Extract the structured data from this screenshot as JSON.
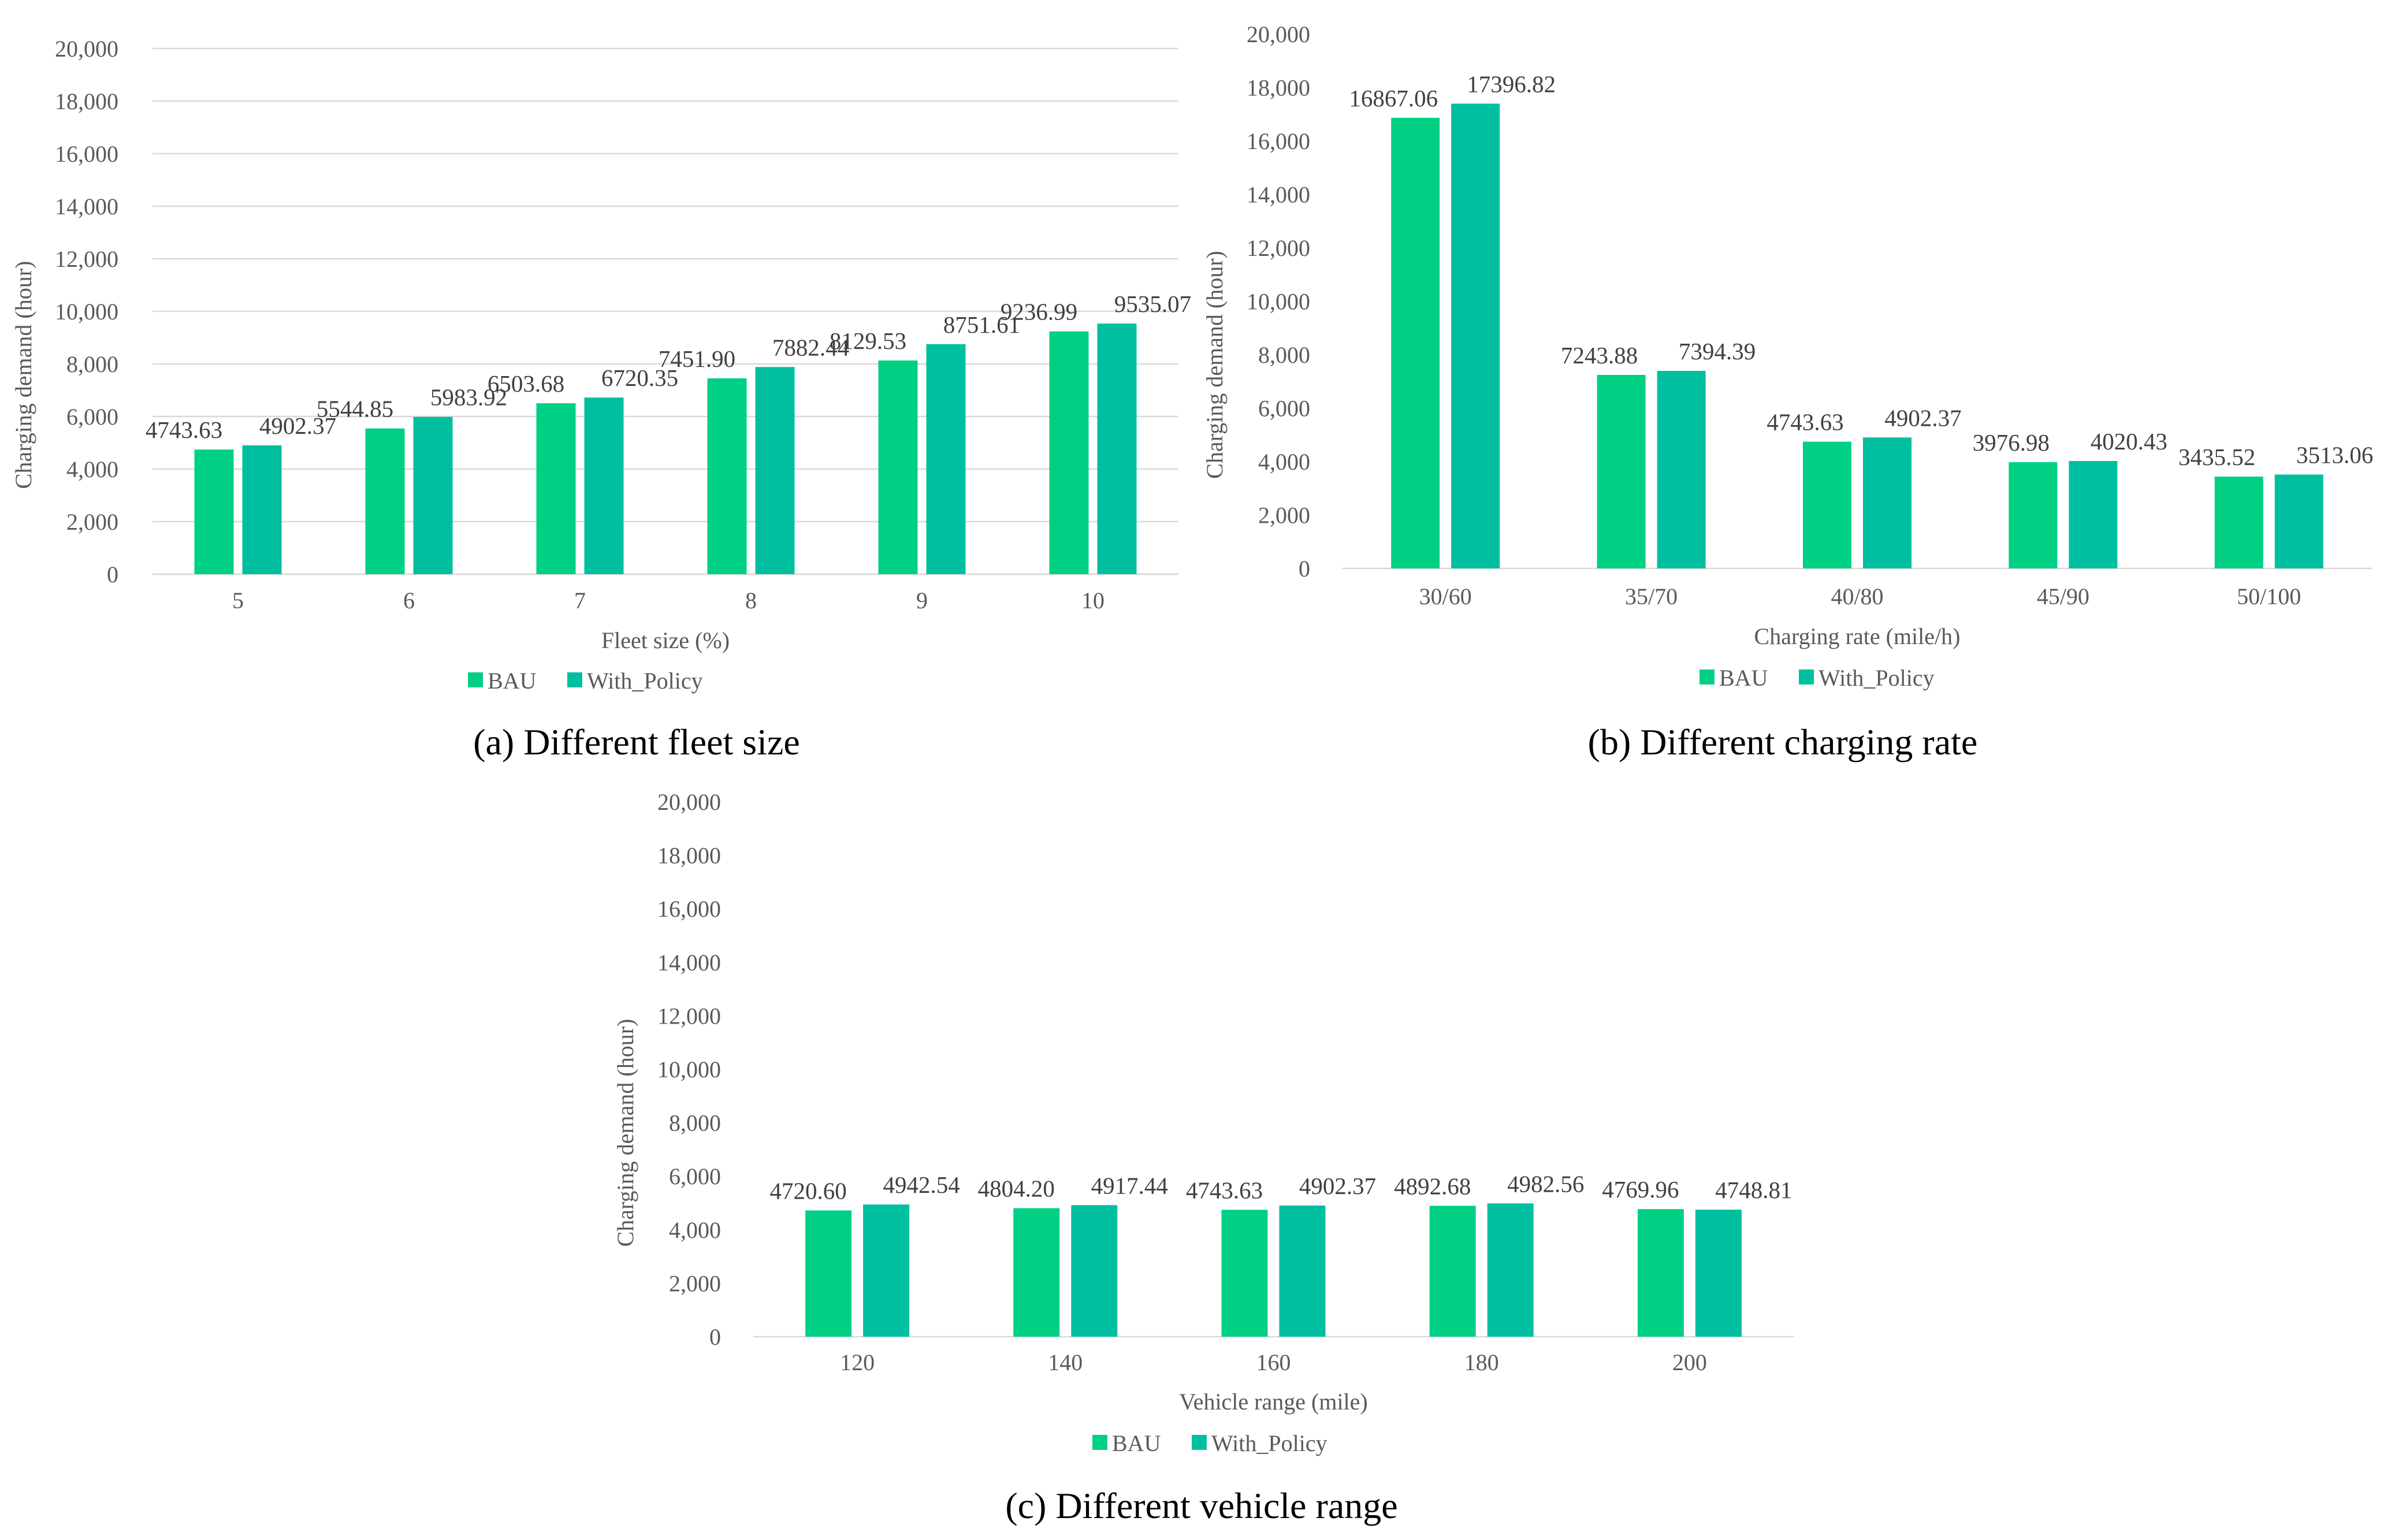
{
  "colors": {
    "bau": "#00d084",
    "policy": "#00bfa0",
    "grid": "#d9d9d9",
    "text": "#595959"
  },
  "captions": {
    "a": "(a) Different fleet size",
    "b": "(b) Different charging rate",
    "c": "(c) Different vehicle range"
  },
  "chart_data": [
    {
      "id": "a",
      "type": "bar",
      "title": "",
      "xlabel": "Fleet size (%)",
      "ylabel": "Charging demand (hour)",
      "categories": [
        "5",
        "6",
        "7",
        "8",
        "9",
        "10"
      ],
      "series": [
        {
          "name": "BAU",
          "values": [
            4743.63,
            5544.85,
            6503.68,
            7451.9,
            8129.53,
            9236.99
          ],
          "labels": [
            "4743.63",
            "5544.85",
            "6503.68",
            "7451.90",
            "8129.53",
            "9236.99"
          ]
        },
        {
          "name": "With_Policy",
          "values": [
            4902.37,
            5983.92,
            6720.35,
            7882.44,
            8751.61,
            9535.07
          ],
          "labels": [
            "4902.37",
            "5983.92",
            "6720.35",
            "7882.44",
            "8751.61",
            "9535.07"
          ]
        }
      ],
      "ylim": [
        0,
        20000
      ],
      "yticks": [
        "0",
        "2,000",
        "4,000",
        "6,000",
        "8,000",
        "10,000",
        "12,000",
        "14,000",
        "16,000",
        "18,000",
        "20,000"
      ],
      "grid": true,
      "legend": "bottom"
    },
    {
      "id": "b",
      "type": "bar",
      "title": "",
      "xlabel": "Charging rate (mile/h)",
      "ylabel": "Charging demand (hour)",
      "categories": [
        "30/60",
        "35/70",
        "40/80",
        "45/90",
        "50/100"
      ],
      "series": [
        {
          "name": "BAU",
          "values": [
            16867.06,
            7243.88,
            4743.63,
            3976.98,
            3435.52
          ],
          "labels": [
            "16867.06",
            "7243.88",
            "4743.63",
            "3976.98",
            "3435.52"
          ]
        },
        {
          "name": "With_Policy",
          "values": [
            17396.82,
            7394.39,
            4902.37,
            4020.43,
            3513.06
          ],
          "labels": [
            "17396.82",
            "7394.39",
            "4902.37",
            "4020.43",
            "3513.06"
          ]
        }
      ],
      "ylim": [
        0,
        20000
      ],
      "yticks": [
        "0",
        "2,000",
        "4,000",
        "6,000",
        "8,000",
        "10,000",
        "12,000",
        "14,000",
        "16,000",
        "18,000",
        "20,000"
      ],
      "grid": false,
      "legend": "bottom"
    },
    {
      "id": "c",
      "type": "bar",
      "title": "",
      "xlabel": "Vehicle range (mile)",
      "ylabel": "Charging demand (hour)",
      "categories": [
        "120",
        "140",
        "160",
        "180",
        "200"
      ],
      "series": [
        {
          "name": "BAU",
          "values": [
            4720.6,
            4804.2,
            4743.63,
            4892.68,
            4769.96
          ],
          "labels": [
            "4720.60",
            "4804.20",
            "4743.63",
            "4892.68",
            "4769.96"
          ]
        },
        {
          "name": "With_Policy",
          "values": [
            4942.54,
            4917.44,
            4902.37,
            4982.56,
            4748.81
          ],
          "labels": [
            "4942.54",
            "4917.44",
            "4902.37",
            "4982.56",
            "4748.81"
          ]
        }
      ],
      "ylim": [
        0,
        20000
      ],
      "yticks": [
        "0",
        "2,000",
        "4,000",
        "6,000",
        "8,000",
        "10,000",
        "12,000",
        "14,000",
        "16,000",
        "18,000",
        "20,000"
      ],
      "grid": false,
      "legend": "bottom"
    }
  ]
}
